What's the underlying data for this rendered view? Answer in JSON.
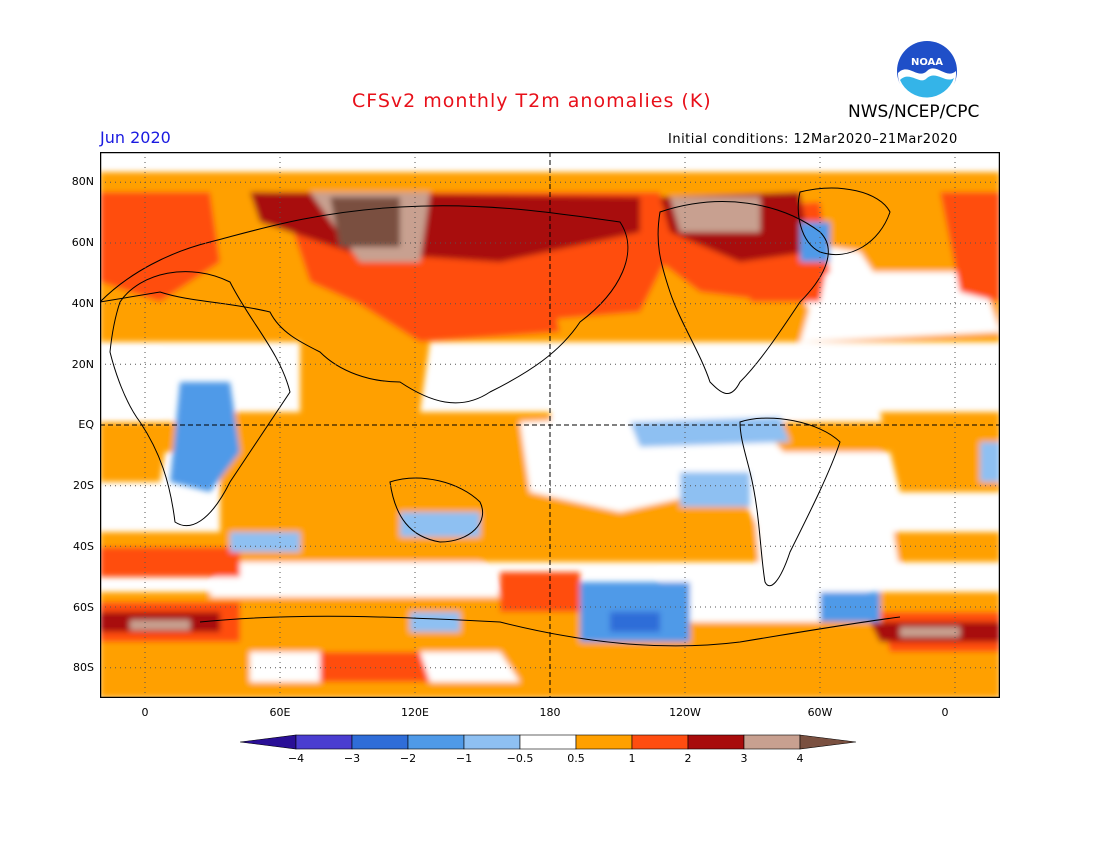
{
  "header": {
    "title": "CFSv2 monthly T2m anomalies (K)",
    "agency": "NWS/NCEP/CPC",
    "month": "Jun 2020",
    "initial_conditions": "Initial conditions: 12Mar2020–21Mar2020",
    "logo_icon": "noaa-logo-icon",
    "logo_text": "NOAA"
  },
  "map": {
    "projection": "equirectangular",
    "lon_range": [
      -20,
      380
    ],
    "lat_range": [
      -90,
      90
    ],
    "grid": "dotted",
    "lat_labels": [
      "80N",
      "60N",
      "40N",
      "20N",
      "EQ",
      "20S",
      "40S",
      "60S",
      "80S"
    ],
    "lon_labels": [
      "0",
      "60E",
      "120E",
      "180",
      "120W",
      "60W",
      "0"
    ],
    "reference_lines": [
      "EQ",
      "180"
    ]
  },
  "colorbar": {
    "labels": [
      "−4",
      "−3",
      "−2",
      "−1",
      "−0.5",
      "0.5",
      "1",
      "2",
      "3",
      "4"
    ],
    "levels": [
      -4,
      -3,
      -2,
      -1,
      -0.5,
      0.5,
      1,
      2,
      3,
      4
    ],
    "colors": [
      "#2a0f96",
      "#4a3dd0",
      "#2f6dd8",
      "#4f9ae8",
      "#8ec0f2",
      "#ffffff",
      "#ffa000",
      "#ff4d10",
      "#a80c0c",
      "#c8a090",
      "#7a5040"
    ]
  }
}
